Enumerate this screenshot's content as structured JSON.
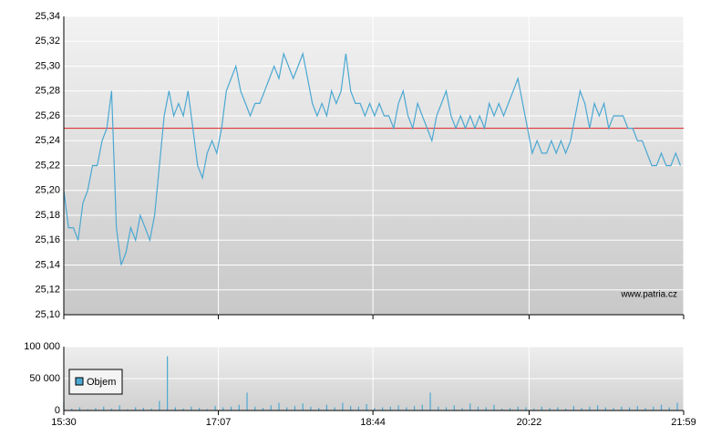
{
  "chart_data": [
    {
      "type": "line",
      "watermark": "www.patria.cz",
      "xlim": [
        0,
        389
      ],
      "ylim": [
        25.1,
        25.34
      ],
      "yticks": [
        {
          "value": 25.1,
          "label": "25,10"
        },
        {
          "value": 25.12,
          "label": "25,12"
        },
        {
          "value": 25.14,
          "label": "25,14"
        },
        {
          "value": 25.16,
          "label": "25,16"
        },
        {
          "value": 25.18,
          "label": "25,18"
        },
        {
          "value": 25.2,
          "label": "25,20"
        },
        {
          "value": 25.22,
          "label": "25,22"
        },
        {
          "value": 25.24,
          "label": "25,24"
        },
        {
          "value": 25.26,
          "label": "25,26"
        },
        {
          "value": 25.28,
          "label": "25,28"
        },
        {
          "value": 25.3,
          "label": "25,30"
        },
        {
          "value": 25.32,
          "label": "25,32"
        },
        {
          "value": 25.34,
          "label": "25,34"
        }
      ],
      "grid": true,
      "reference_line": {
        "value": 25.25,
        "color": "#dd2222"
      },
      "series": [
        {
          "color": "#4ba8d2",
          "x": [
            0,
            3,
            6,
            9,
            12,
            15,
            18,
            21,
            24,
            27,
            30,
            33,
            36,
            39,
            42,
            45,
            48,
            51,
            54,
            57,
            60,
            63,
            66,
            69,
            72,
            75,
            78,
            81,
            84,
            87,
            90,
            93,
            96,
            99,
            102,
            105,
            108,
            111,
            114,
            117,
            120,
            123,
            126,
            129,
            132,
            135,
            138,
            141,
            144,
            147,
            150,
            153,
            156,
            159,
            162,
            165,
            168,
            171,
            174,
            177,
            180,
            183,
            186,
            189,
            192,
            195,
            198,
            201,
            204,
            207,
            210,
            213,
            216,
            219,
            222,
            225,
            228,
            231,
            234,
            237,
            240,
            243,
            246,
            249,
            252,
            255,
            258,
            261,
            264,
            267,
            270,
            273,
            276,
            279,
            282,
            285,
            288,
            291,
            294,
            297,
            300,
            303,
            306,
            309,
            312,
            315,
            318,
            321,
            324,
            327,
            330,
            333,
            336,
            339,
            342,
            345,
            348,
            351,
            354,
            357,
            360,
            363,
            366,
            369,
            372,
            375,
            378,
            381,
            384,
            387
          ],
          "values": [
            25.2,
            25.17,
            25.17,
            25.16,
            25.19,
            25.2,
            25.22,
            25.22,
            25.24,
            25.25,
            25.28,
            25.17,
            25.14,
            25.15,
            25.17,
            25.16,
            25.18,
            25.17,
            25.16,
            25.18,
            25.22,
            25.26,
            25.28,
            25.26,
            25.27,
            25.26,
            25.28,
            25.25,
            25.22,
            25.21,
            25.23,
            25.24,
            25.23,
            25.25,
            25.28,
            25.29,
            25.3,
            25.28,
            25.27,
            25.26,
            25.27,
            25.27,
            25.28,
            25.29,
            25.3,
            25.29,
            25.31,
            25.3,
            25.29,
            25.3,
            25.31,
            25.29,
            25.27,
            25.26,
            25.27,
            25.26,
            25.28,
            25.27,
            25.28,
            25.31,
            25.28,
            25.27,
            25.27,
            25.26,
            25.27,
            25.26,
            25.27,
            25.26,
            25.26,
            25.25,
            25.27,
            25.28,
            25.26,
            25.25,
            25.27,
            25.26,
            25.25,
            25.24,
            25.26,
            25.27,
            25.28,
            25.26,
            25.25,
            25.26,
            25.25,
            25.26,
            25.25,
            25.26,
            25.25,
            25.27,
            25.26,
            25.27,
            25.26,
            25.27,
            25.28,
            25.29,
            25.27,
            25.25,
            25.23,
            25.24,
            25.23,
            25.23,
            25.24,
            25.23,
            25.24,
            25.23,
            25.24,
            25.26,
            25.28,
            25.27,
            25.25,
            25.27,
            25.26,
            25.27,
            25.25,
            25.26,
            25.26,
            25.26,
            25.25,
            25.25,
            25.24,
            25.24,
            25.23,
            25.22,
            25.22,
            25.23,
            25.22,
            25.22,
            25.23,
            25.22
          ]
        }
      ]
    },
    {
      "type": "bar",
      "xlim": [
        0,
        389
      ],
      "xticks": [
        {
          "value": 0,
          "label": "15:30"
        },
        {
          "value": 97,
          "label": "17:07"
        },
        {
          "value": 194,
          "label": "18:44"
        },
        {
          "value": 292,
          "label": "20:22"
        },
        {
          "value": 389,
          "label": "21:59"
        }
      ],
      "ylim": [
        0,
        100000
      ],
      "yticks": [
        0,
        {
          "value": 50000,
          "label": "50 000"
        },
        {
          "value": 100000,
          "label": "100 000"
        }
      ],
      "grid": true,
      "series": [
        {
          "name": "Objem",
          "color": "#4ba8d2",
          "x": [
            0,
            5,
            10,
            15,
            20,
            25,
            30,
            35,
            40,
            45,
            50,
            55,
            60,
            65,
            70,
            75,
            80,
            85,
            90,
            95,
            100,
            105,
            110,
            115,
            120,
            125,
            130,
            135,
            140,
            145,
            150,
            155,
            160,
            165,
            170,
            175,
            180,
            185,
            190,
            195,
            200,
            205,
            210,
            215,
            220,
            225,
            230,
            235,
            240,
            245,
            250,
            255,
            260,
            265,
            270,
            275,
            280,
            285,
            290,
            295,
            300,
            305,
            310,
            315,
            320,
            325,
            330,
            335,
            340,
            345,
            350,
            355,
            360,
            365,
            370,
            375,
            380,
            385
          ],
          "values": [
            12000,
            3000,
            5000,
            2000,
            4000,
            6000,
            3000,
            8000,
            2000,
            5000,
            4000,
            3000,
            15000,
            85000,
            5000,
            3000,
            6000,
            4000,
            2000,
            7000,
            5000,
            6000,
            9000,
            28000,
            6000,
            4000,
            8000,
            12000,
            5000,
            7000,
            11000,
            6000,
            4000,
            9000,
            5000,
            12000,
            7000,
            6000,
            10000,
            4000,
            5000,
            6000,
            8000,
            5000,
            7000,
            9000,
            28000,
            6000,
            5000,
            8000,
            4000,
            11000,
            6000,
            5000,
            9000,
            3000,
            4000,
            6000,
            5000,
            3000,
            6000,
            4000,
            5000,
            3000,
            7000,
            4000,
            6000,
            8000,
            5000,
            4000,
            6000,
            5000,
            7000,
            4000,
            6000,
            9000,
            5000,
            12000
          ]
        }
      ]
    }
  ]
}
